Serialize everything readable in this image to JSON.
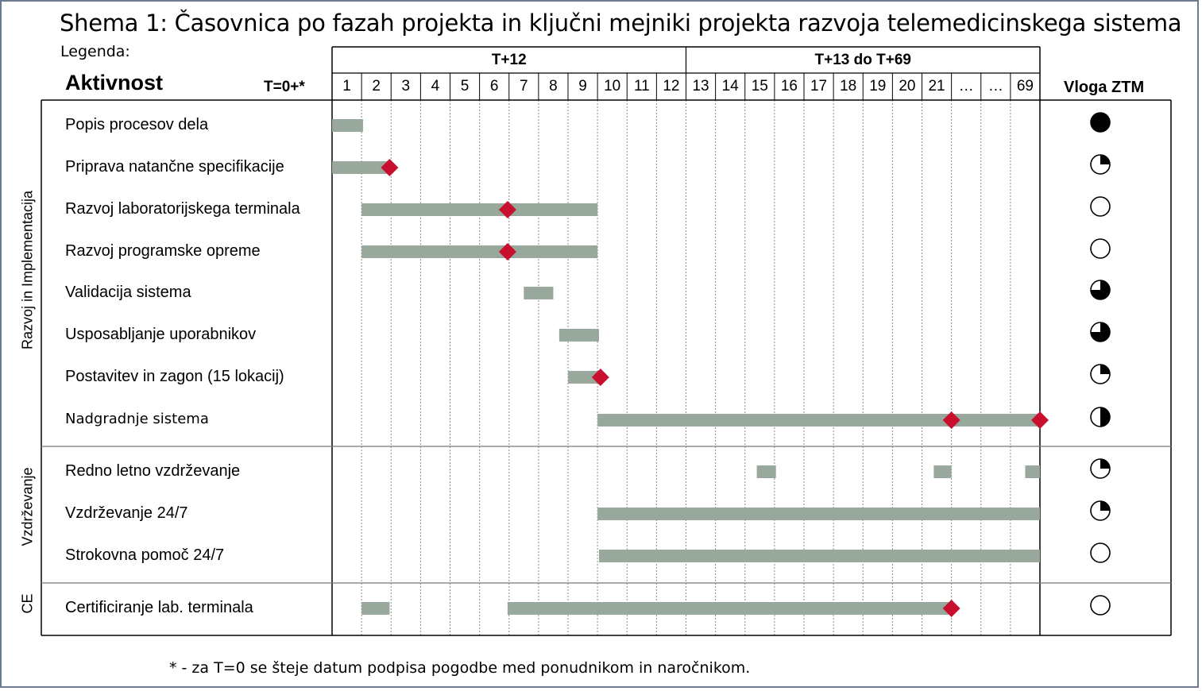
{
  "title": "Shema 1: Časovnica po fazah projekta in ključni mejniki projekta razvoja telemedicinskega sistema",
  "legend_label": "Legenda:",
  "header": {
    "activity": "Aktivnost",
    "t0": "T=0+*",
    "role": "Vloga ZTM",
    "periods": [
      "T+12",
      "T+13 do T+69"
    ],
    "months": [
      "1",
      "2",
      "3",
      "4",
      "5",
      "6",
      "7",
      "8",
      "9",
      "10",
      "11",
      "12",
      "13",
      "14",
      "15",
      "16",
      "17",
      "18",
      "19",
      "20",
      "21",
      "…",
      "…",
      "69"
    ]
  },
  "groups": [
    {
      "label": "Razvoj in Implementacija"
    },
    {
      "label": "Vzdrževanje"
    },
    {
      "label": "CE"
    }
  ],
  "activities": [
    {
      "label": "Popis procesov dela",
      "group": 0,
      "bars": [
        [
          0,
          1.05
        ]
      ],
      "milestones": [],
      "role": "full"
    },
    {
      "label": "Priprava  natančne specifikacije",
      "group": 0,
      "bars": [
        [
          0,
          1.9
        ]
      ],
      "milestones": [
        1.95
      ],
      "role": "quarter"
    },
    {
      "label": "Razvoj laboratorijskega terminala",
      "group": 0,
      "bars": [
        [
          1,
          9
        ]
      ],
      "milestones": [
        5.95
      ],
      "role": "empty"
    },
    {
      "label": "Razvoj programske opreme",
      "group": 0,
      "bars": [
        [
          1,
          9
        ]
      ],
      "milestones": [
        5.95
      ],
      "role": "empty"
    },
    {
      "label": "Validacija sistema",
      "group": 0,
      "bars": [
        [
          6.5,
          7.5
        ]
      ],
      "milestones": [],
      "role": "three-quarter"
    },
    {
      "label": "Usposabljanje uporabnikov",
      "group": 0,
      "bars": [
        [
          7.7,
          9.05
        ]
      ],
      "milestones": [],
      "role": "three-quarter"
    },
    {
      "label": "Postavitev in zagon (15 lokacij)",
      "group": 0,
      "bars": [
        [
          8,
          9.1
        ]
      ],
      "milestones": [
        9.1
      ],
      "role": "quarter"
    },
    {
      "label": "Nadgradnje sistema",
      "group": 0,
      "small": true,
      "bars": [
        [
          9,
          24
        ]
      ],
      "milestones": [
        21,
        24
      ],
      "role": "half"
    },
    {
      "label": "Redno letno vzdrževanje",
      "group": 1,
      "bars": [
        [
          14.4,
          15.05
        ],
        [
          20.4,
          21.0
        ],
        [
          23.5,
          24
        ]
      ],
      "milestones": [],
      "role": "quarter"
    },
    {
      "label": "Vzdrževanje 24/7",
      "group": 1,
      "bars": [
        [
          9,
          24
        ]
      ],
      "milestones": [],
      "role": "quarter"
    },
    {
      "label": "Strokovna pomoč 24/7",
      "group": 1,
      "bars": [
        [
          9.05,
          24
        ]
      ],
      "milestones": [],
      "role": "empty"
    },
    {
      "label": "Certificiranje lab. terminala",
      "group": 2,
      "bars": [
        [
          1,
          1.95
        ],
        [
          5.95,
          21
        ]
      ],
      "milestones": [
        21
      ],
      "role": "empty"
    }
  ],
  "footnote": "* - za T=0 se šteje datum podpisa pogodbe med ponudnikom in naročnikom.",
  "colors": {
    "bar": "#98a89c",
    "milestone": "#c8102e",
    "line": "#000000",
    "grid": "#8a8a8a",
    "frame": "#6b7a8c"
  }
}
